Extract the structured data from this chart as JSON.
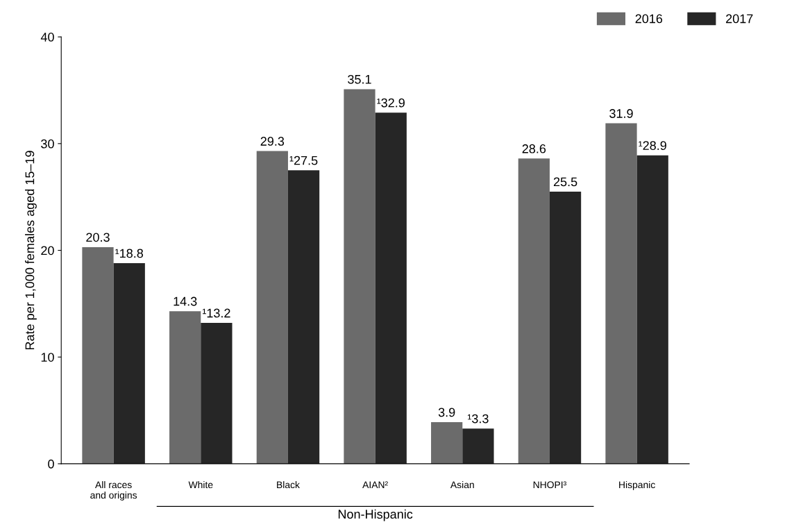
{
  "chart_data": {
    "type": "bar",
    "ylabel": "Rate per 1,000 females aged 15–19",
    "categories": [
      "All races\nand origins",
      "White",
      "Black",
      "AIAN²",
      "Asian",
      "NHOPI³",
      "Hispanic"
    ],
    "series": [
      {
        "name": "2016",
        "color": "#6b6b6b",
        "values": [
          20.3,
          14.3,
          29.3,
          35.1,
          3.9,
          28.6,
          31.9
        ],
        "value_labels": [
          "20.3",
          "14.3",
          "29.3",
          "35.1",
          "3.9",
          "28.6",
          "31.9"
        ]
      },
      {
        "name": "2017",
        "color": "#262626",
        "values": [
          18.8,
          13.2,
          27.5,
          32.9,
          3.3,
          25.5,
          28.9
        ],
        "value_labels": [
          "¹18.8",
          "¹13.2",
          "¹27.5",
          "¹32.9",
          "¹3.3",
          "25.5",
          "¹28.9"
        ]
      }
    ],
    "ylim": [
      0,
      40
    ],
    "yticks": [
      0,
      10,
      20,
      30,
      40
    ],
    "grid": false,
    "legend": "top right",
    "annotations": [
      "Non-Hispanic"
    ]
  }
}
